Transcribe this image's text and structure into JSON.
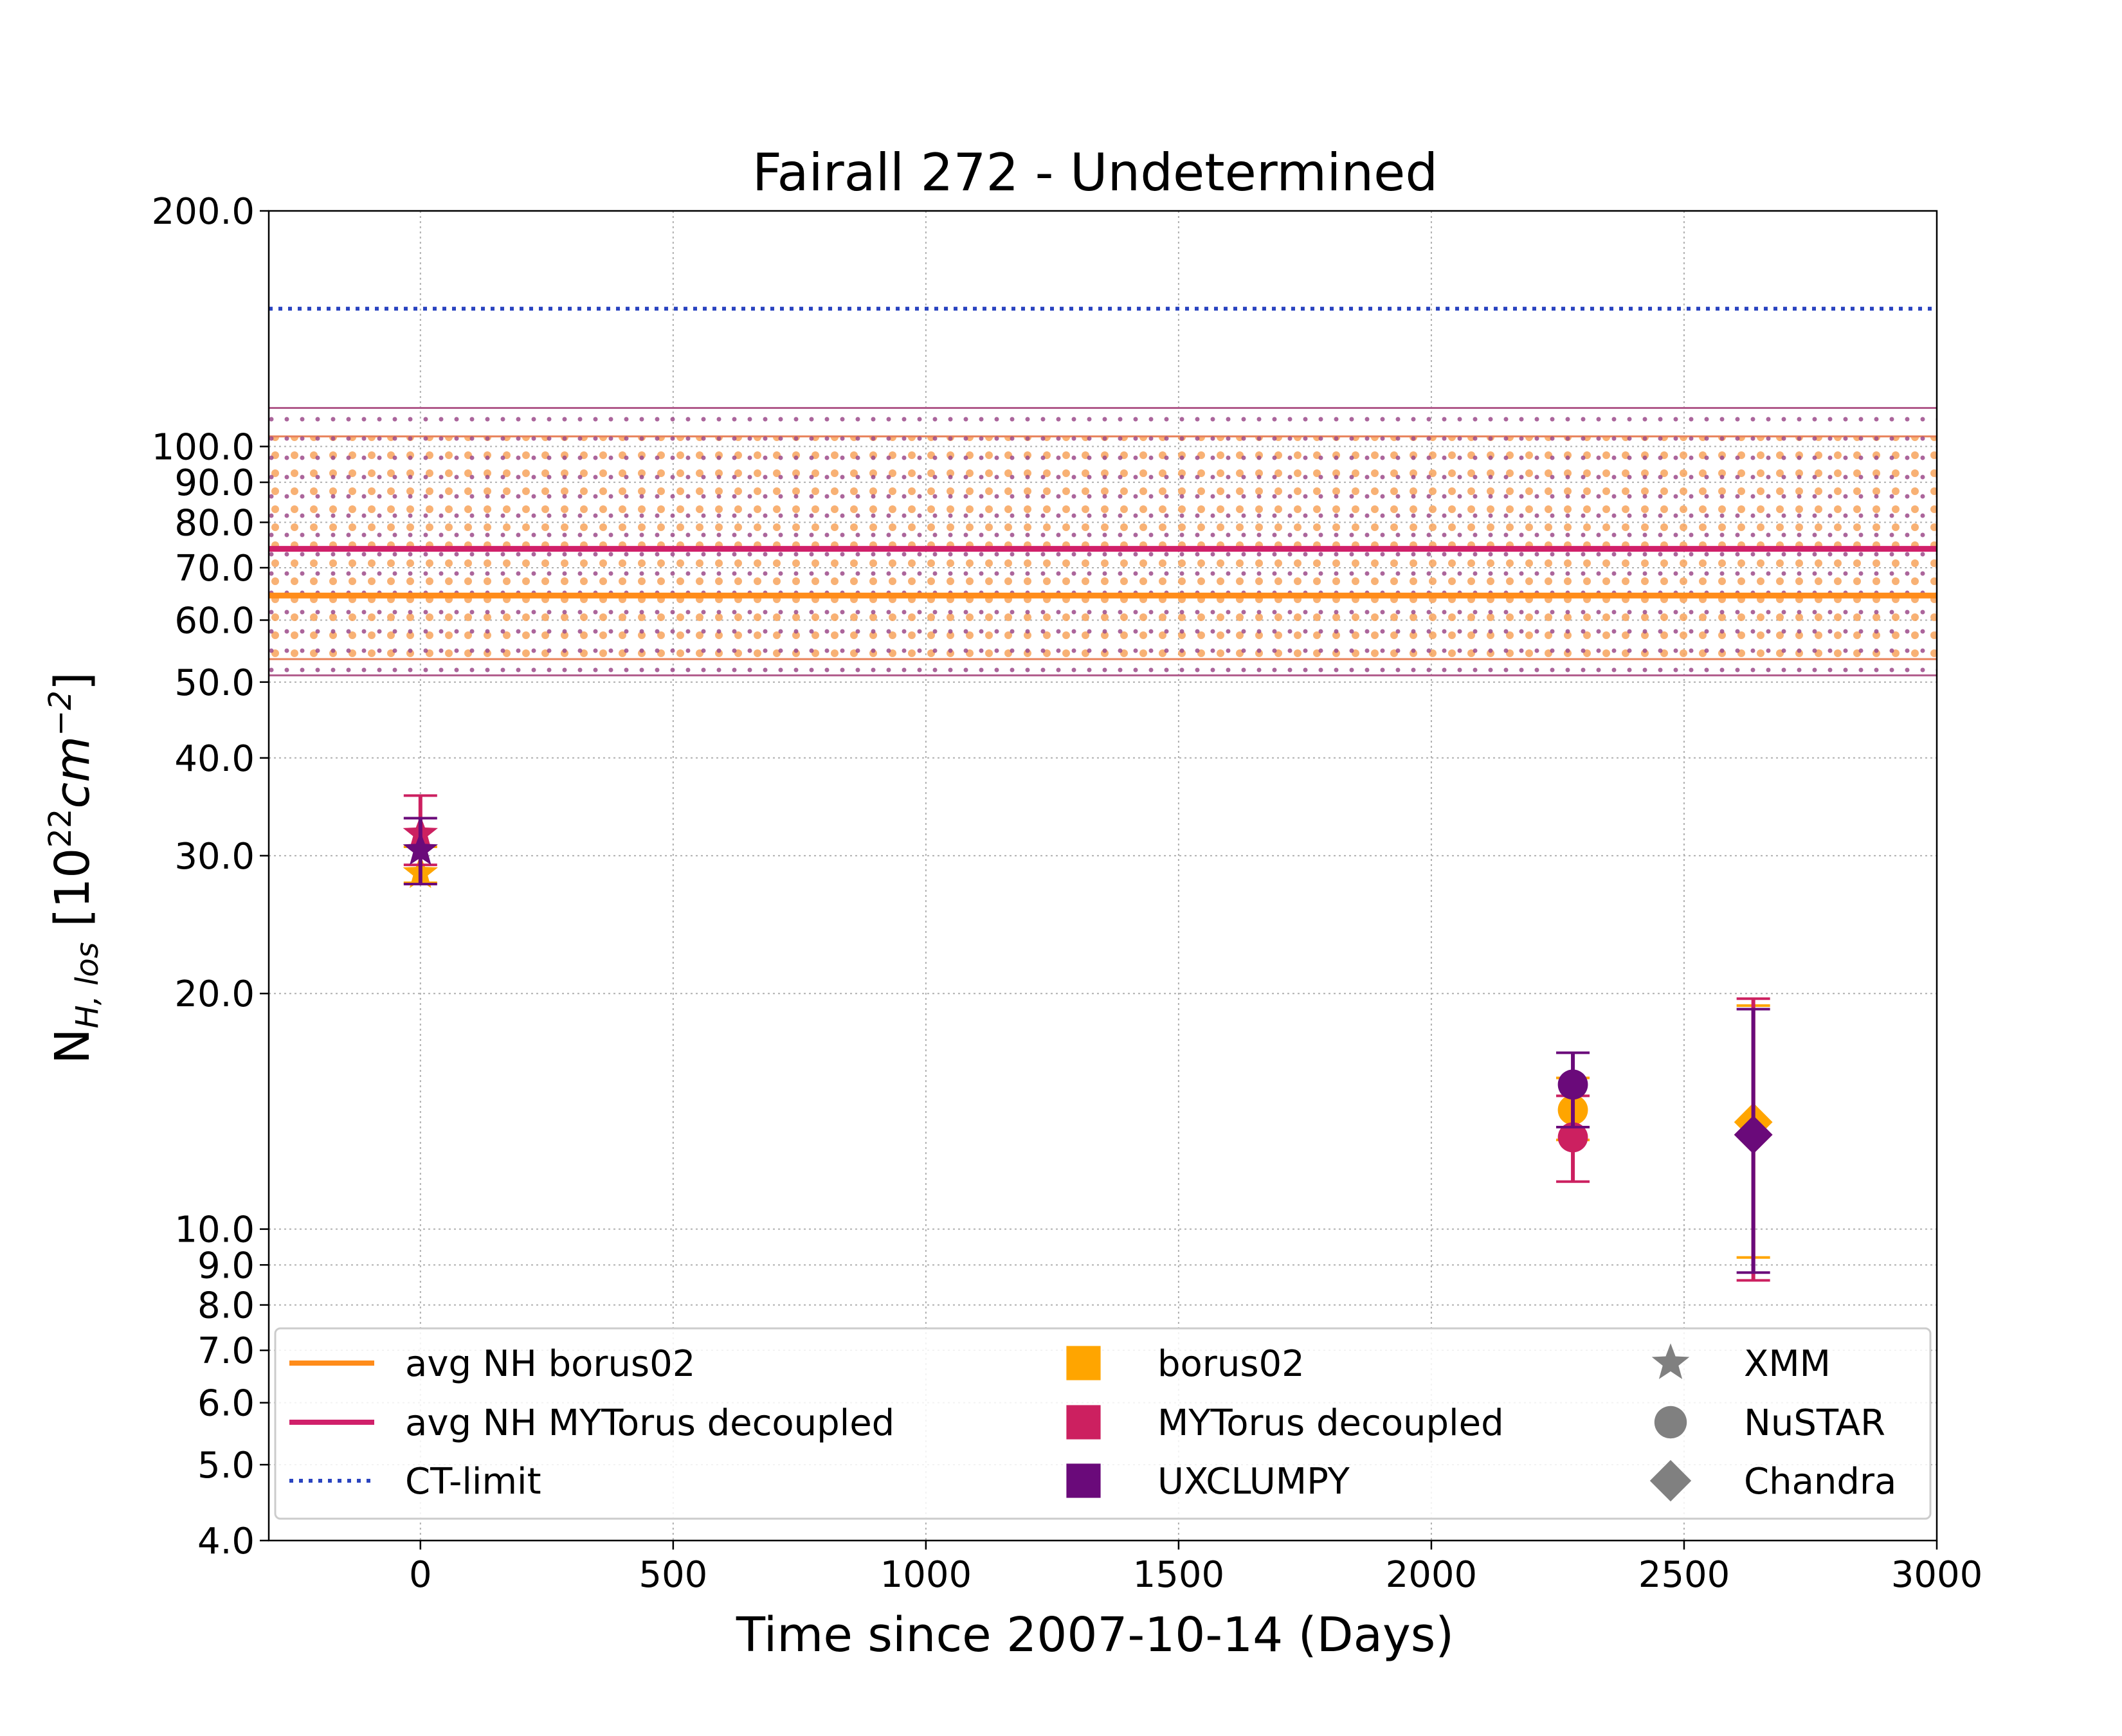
{
  "chart_data": {
    "type": "scatter",
    "title": "Fairall 272 - Undetermined",
    "xlabel": "Time since 2007-10-14 (Days)",
    "ylabel_main": "N",
    "ylabel_sub": "H, los",
    "ylabel_unit_open": " [10",
    "ylabel_unit_exp1": "22",
    "ylabel_unit_mid": "cm",
    "ylabel_unit_exp2": "−2",
    "ylabel_unit_close": "]",
    "xlim": [
      -300,
      3000
    ],
    "ylim": [
      4.0,
      200.0
    ],
    "yscale": "log",
    "grid": true,
    "x_ticks": [
      {
        "value": 0,
        "label": "0"
      },
      {
        "value": 500,
        "label": "500"
      },
      {
        "value": 1000,
        "label": "1000"
      },
      {
        "value": 1500,
        "label": "1500"
      },
      {
        "value": 2000,
        "label": "2000"
      },
      {
        "value": 2500,
        "label": "2500"
      },
      {
        "value": 3000,
        "label": "3000"
      }
    ],
    "y_ticks": [
      {
        "value": 4,
        "label": "4.0"
      },
      {
        "value": 5,
        "label": "5.0"
      },
      {
        "value": 6,
        "label": "6.0"
      },
      {
        "value": 7,
        "label": "7.0"
      },
      {
        "value": 8,
        "label": "8.0"
      },
      {
        "value": 9,
        "label": "9.0"
      },
      {
        "value": 10,
        "label": "10.0"
      },
      {
        "value": 20,
        "label": "20.0"
      },
      {
        "value": 30,
        "label": "30.0"
      },
      {
        "value": 40,
        "label": "40.0"
      },
      {
        "value": 50,
        "label": "50.0"
      },
      {
        "value": 60,
        "label": "60.0"
      },
      {
        "value": 70,
        "label": "70.0"
      },
      {
        "value": 80,
        "label": "80.0"
      },
      {
        "value": 90,
        "label": "90.0"
      },
      {
        "value": 100,
        "label": "100.0"
      },
      {
        "value": 200,
        "label": "200.0"
      }
    ],
    "reference_lines": [
      {
        "name": "avg NH borus02",
        "y": 64.5,
        "color": "#ff8c1a",
        "style": "solid",
        "band": [
          53.5,
          103.0
        ]
      },
      {
        "name": "avg NH MYTorus decoupled",
        "y": 74.0,
        "color": "#d0206a",
        "style": "solid",
        "band": [
          51.0,
          112.0
        ]
      },
      {
        "name": "CT-limit",
        "y": 150.0,
        "color": "#2a44c0",
        "style": "dotted"
      }
    ],
    "series": [
      {
        "name": "borus02",
        "color": "#ffa500",
        "points": [
          {
            "x": 0,
            "y": 28.5,
            "err_low": 27.7,
            "err_high": 30.8,
            "instrument": "XMM"
          },
          {
            "x": 2280,
            "y": 14.2,
            "err_low": 13.0,
            "err_high": 15.6,
            "instrument": "NuSTAR"
          },
          {
            "x": 2637,
            "y": 13.7,
            "err_low": 9.2,
            "err_high": 19.3,
            "instrument": "Chandra"
          }
        ]
      },
      {
        "name": "MYTorus decoupled",
        "color": "#cc2060",
        "points": [
          {
            "x": 0,
            "y": 32.0,
            "err_low": 29.2,
            "err_high": 35.8,
            "instrument": "XMM"
          },
          {
            "x": 2280,
            "y": 13.1,
            "err_low": 11.5,
            "err_high": 14.8,
            "instrument": "NuSTAR"
          },
          {
            "x": 2637,
            "y": 13.2,
            "err_low": 8.6,
            "err_high": 19.7,
            "instrument": "Chandra"
          }
        ]
      },
      {
        "name": "UXCLUMPY",
        "color": "#6a0a7a",
        "points": [
          {
            "x": 0,
            "y": 30.5,
            "err_low": 27.6,
            "err_high": 33.5,
            "instrument": "XMM"
          },
          {
            "x": 2280,
            "y": 15.3,
            "err_low": 13.5,
            "err_high": 16.8,
            "instrument": "NuSTAR"
          },
          {
            "x": 2637,
            "y": 13.2,
            "err_low": 8.8,
            "err_high": 19.1,
            "instrument": "Chandra"
          }
        ]
      }
    ],
    "legend": {
      "placement": "bottom",
      "column1": [
        {
          "label": "avg NH borus02",
          "color": "#ff8c1a",
          "style": "solid"
        },
        {
          "label": "avg NH MYTorus decoupled",
          "color": "#d0206a",
          "style": "solid"
        },
        {
          "label": "CT-limit",
          "color": "#2a44c0",
          "style": "dotted"
        }
      ],
      "column2": [
        {
          "label": "borus02",
          "color": "#ffa500",
          "marker": "square"
        },
        {
          "label": "MYTorus decoupled",
          "color": "#cc2060",
          "marker": "square"
        },
        {
          "label": "UXCLUMPY",
          "color": "#6a0a7a",
          "marker": "square"
        }
      ],
      "column3": [
        {
          "label": "XMM",
          "color": "#808080",
          "marker": "star"
        },
        {
          "label": "NuSTAR",
          "color": "#808080",
          "marker": "circle"
        },
        {
          "label": "Chandra",
          "color": "#808080",
          "marker": "diamond"
        }
      ]
    }
  }
}
